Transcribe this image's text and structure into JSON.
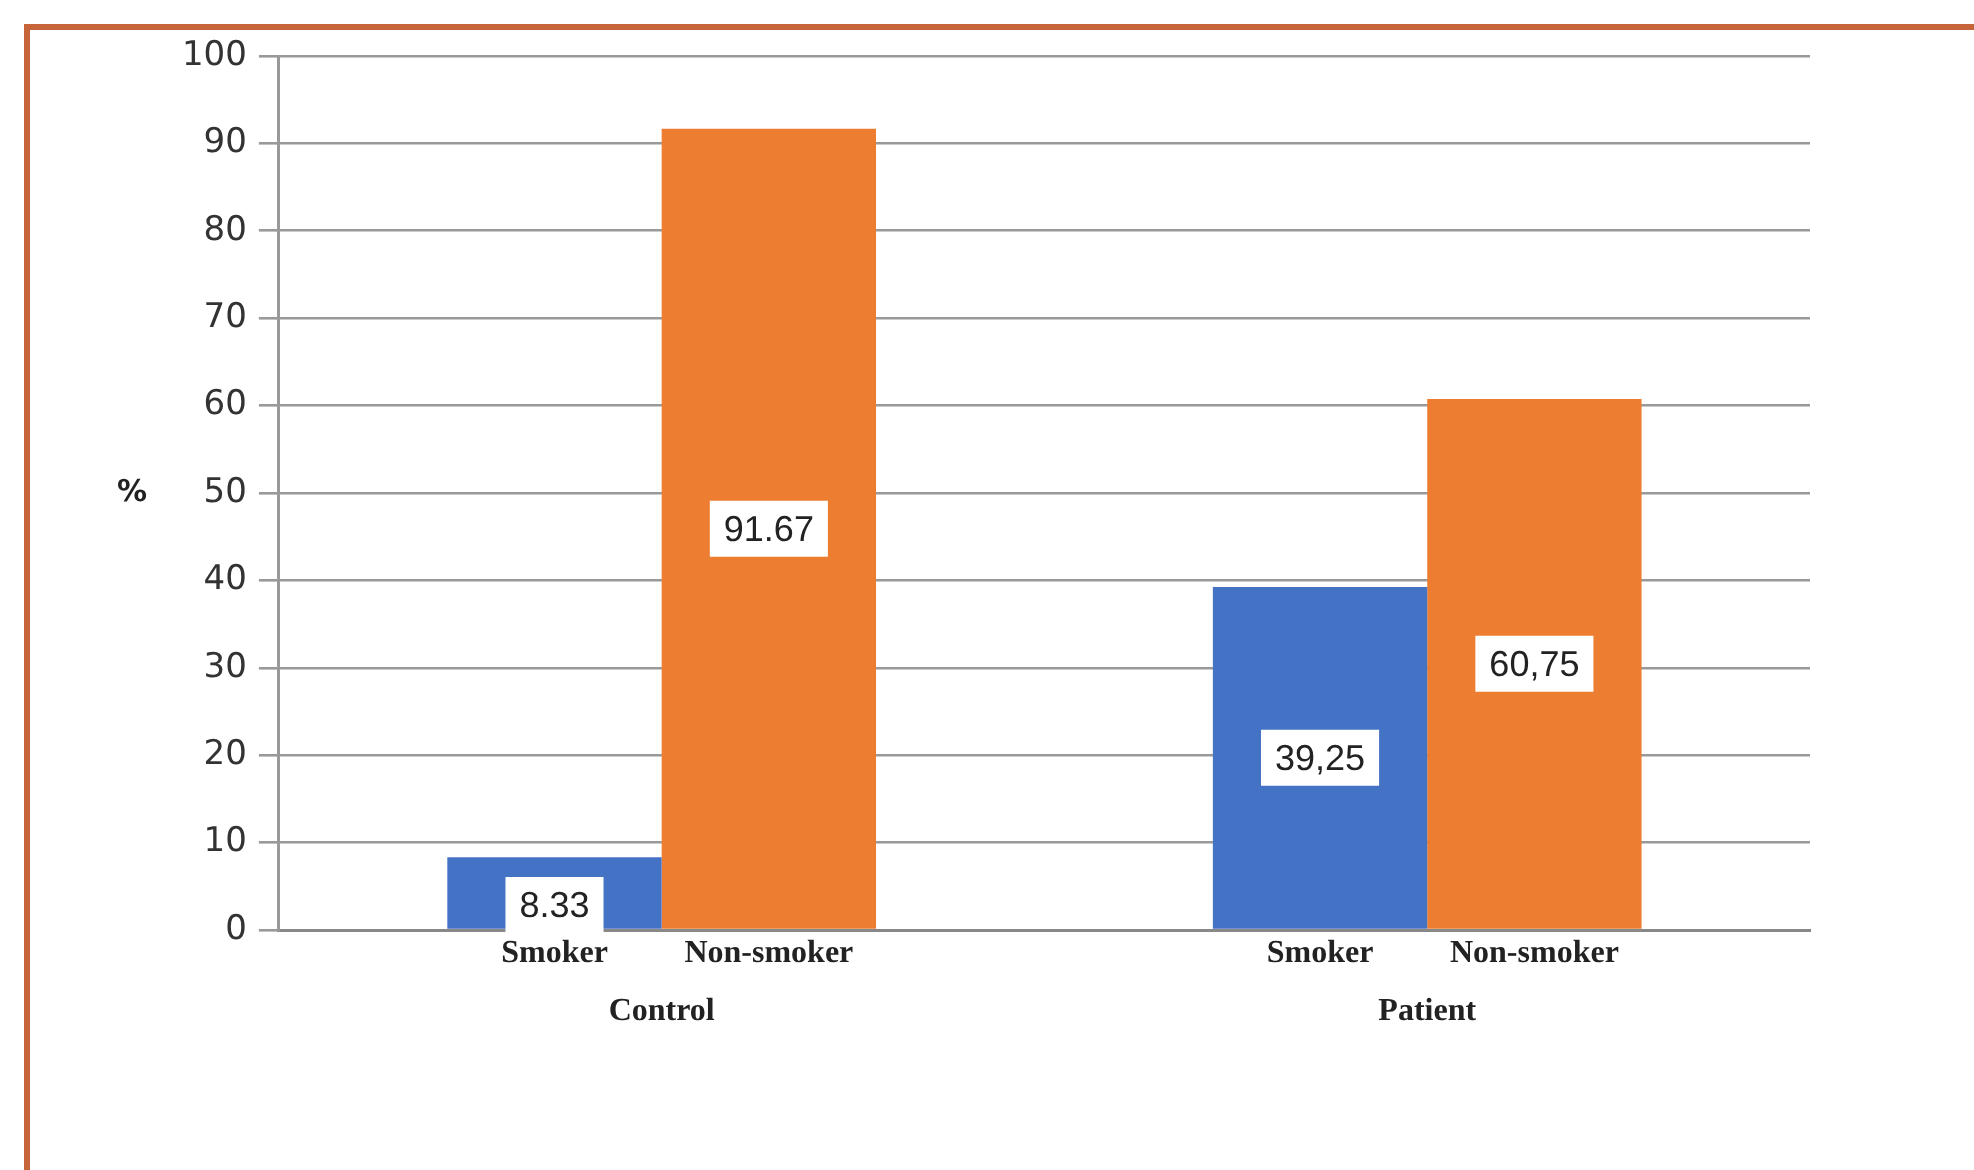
{
  "chart_data": {
    "type": "bar",
    "ylabel": "%",
    "categories": [
      "Control",
      "Patient"
    ],
    "series": [
      {
        "name": "Smoker",
        "color": "#4472c4",
        "values": [
          8.33,
          39.25
        ],
        "value_labels": [
          "8.33",
          "39,25"
        ]
      },
      {
        "name": "Non-smoker",
        "color": "#ed7d31",
        "values": [
          91.67,
          60.75
        ],
        "value_labels": [
          "91.67",
          "60,75"
        ]
      }
    ],
    "ylim": [
      0,
      100
    ],
    "yticks": [
      0,
      10,
      20,
      30,
      40,
      50,
      60,
      70,
      80,
      90,
      100
    ],
    "grid": "y",
    "legend": false
  }
}
